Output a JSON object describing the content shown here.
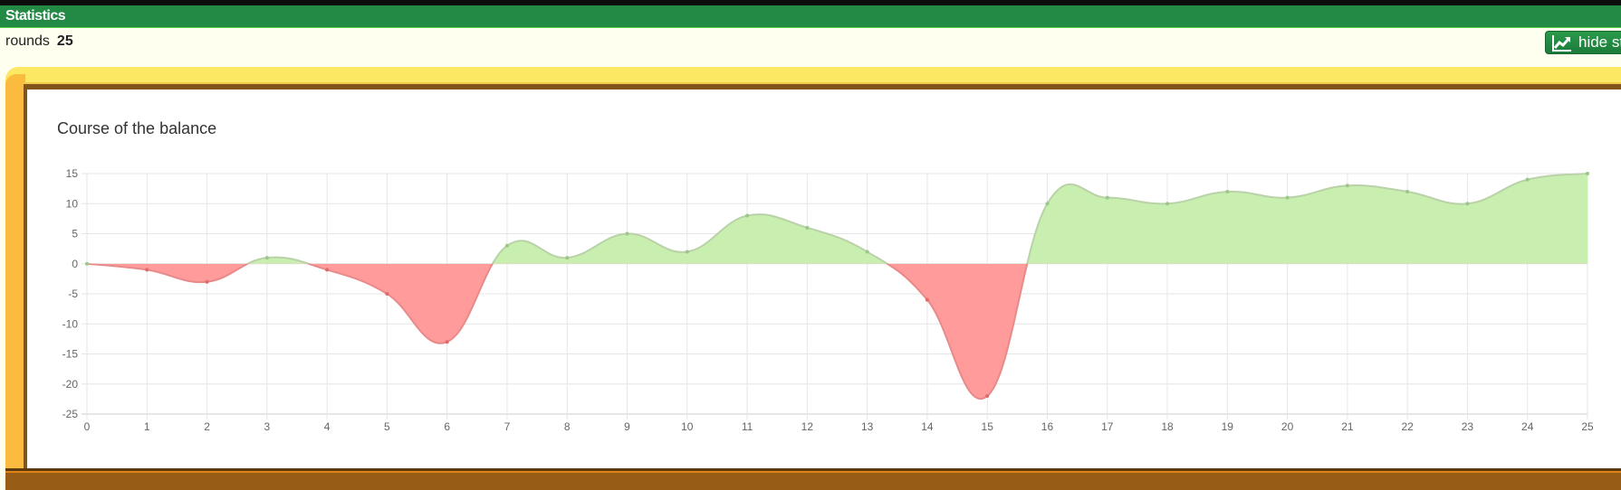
{
  "header": {
    "title": "Statistics"
  },
  "summary": {
    "rounds_label": "rounds",
    "rounds_value": "25"
  },
  "toolbar": {
    "hide_label": "hide statistics",
    "hide_icon": "line-chart-icon"
  },
  "colors": {
    "positive_fill": "#c8eeb0",
    "negative_fill": "#ff9b9b",
    "line": "#b8c8b0",
    "grid": "#e6e6e6",
    "header": "#228a44"
  },
  "chart_data": {
    "type": "area",
    "title": "Course of the balance",
    "x": [
      0,
      1,
      2,
      3,
      4,
      5,
      6,
      7,
      8,
      9,
      10,
      11,
      12,
      13,
      14,
      15,
      16,
      17,
      18,
      19,
      20,
      21,
      22,
      23,
      24,
      25
    ],
    "values": [
      0,
      -1,
      -3,
      1,
      -1,
      -5,
      -13,
      3,
      1,
      5,
      2,
      8,
      6,
      2,
      -6,
      -22,
      10,
      11,
      10,
      12,
      11,
      13,
      12,
      10,
      14,
      15
    ],
    "xlim": [
      0,
      25
    ],
    "ylim": [
      -25,
      15
    ],
    "yticks": [
      15,
      10,
      5,
      0,
      -5,
      -10,
      -15,
      -20,
      -25
    ],
    "grid": true,
    "legend": "none"
  }
}
